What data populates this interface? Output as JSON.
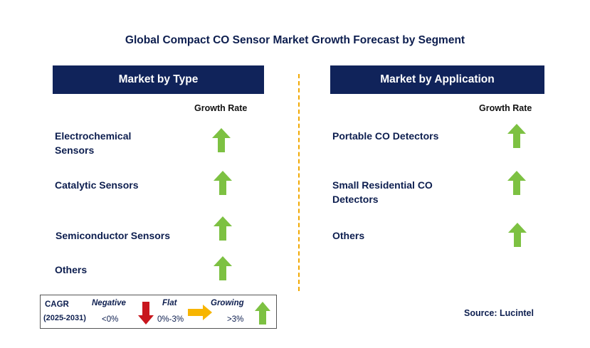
{
  "title": "Global Compact CO Sensor Market Growth Forecast by Segment",
  "left_panel": {
    "header": "Market by Type",
    "growth_rate_label": "Growth Rate",
    "items": [
      {
        "label": "Electrochemical\n Sensors",
        "trend": "growing"
      },
      {
        "label": "Catalytic Sensors",
        "trend": "growing"
      },
      {
        "label": "Semiconductor Sensors",
        "trend": "growing"
      },
      {
        "label": "Others",
        "trend": "growing"
      }
    ]
  },
  "right_panel": {
    "header": "Market by Application",
    "growth_rate_label": "Growth Rate",
    "items": [
      {
        "label": "Portable CO Detectors",
        "trend": "growing"
      },
      {
        "label": "Small Residential CO\n Detectors",
        "trend": "growing"
      },
      {
        "label": "Others",
        "trend": "growing"
      }
    ]
  },
  "legend": {
    "cagr_label": "CAGR",
    "period": "(2025-2031)",
    "negative_label": "Negative",
    "negative_range": "<0%",
    "flat_label": "Flat",
    "flat_range": "0%-3%",
    "growing_label": "Growing",
    "growing_range": ">3%"
  },
  "source": "Source: Lucintel",
  "colors": {
    "header_bg": "#10235a",
    "text": "#0d1e4f",
    "growing": "#7dc142",
    "negative": "#c8161d",
    "flat": "#f7b500",
    "divider": "#f2a900"
  }
}
